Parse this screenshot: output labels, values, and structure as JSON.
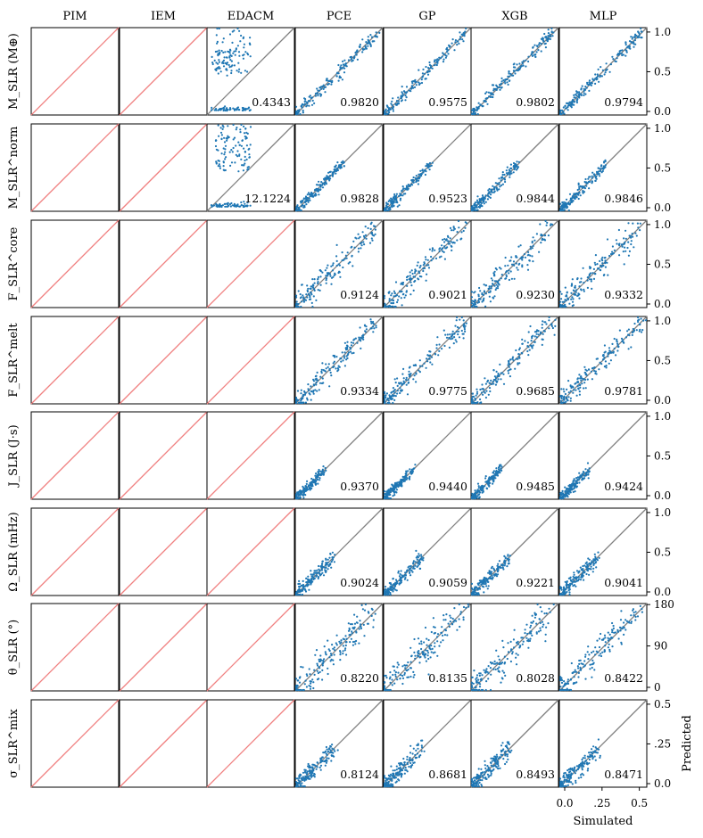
{
  "colors": {
    "scatter": "#1f77b4",
    "identity_line": "#808080",
    "empty_line": "#f08080",
    "frame": "#000000"
  },
  "columns": [
    "PIM",
    "IEM",
    "EDACM",
    "PCE",
    "GP",
    "XGB",
    "MLP"
  ],
  "rows": [
    {
      "label": "M_SLR (M⊕)",
      "yticks": [
        "0.0",
        "0.5",
        "1.0"
      ],
      "ytick_values": [
        0.0,
        0.5,
        1.0
      ],
      "range": [
        0,
        1.1
      ]
    },
    {
      "label": "M_SLR^norm",
      "yticks": [
        "0.0",
        "0.5",
        "1.0"
      ],
      "ytick_values": [
        0.0,
        0.5,
        1.0
      ],
      "range": [
        0,
        1.1
      ]
    },
    {
      "label": "F_SLR^core",
      "yticks": [
        "0.0",
        "0.5",
        "1.0"
      ],
      "ytick_values": [
        0.0,
        0.5,
        1.0
      ],
      "range": [
        0,
        1.1
      ]
    },
    {
      "label": "F_SLR^melt",
      "yticks": [
        "0.0",
        "0.5",
        "1.0"
      ],
      "ytick_values": [
        0.0,
        0.5,
        1.0
      ],
      "range": [
        0,
        1.1
      ]
    },
    {
      "label": "J_SLR (J·s)",
      "yticks": [
        "0.0",
        "0.5",
        "1.0"
      ],
      "ytick_values": [
        0.0,
        0.5,
        1.0
      ],
      "range": [
        0,
        1.1
      ]
    },
    {
      "label": "Ω_SLR (mHz)",
      "yticks": [
        "0.0",
        "0.5",
        "1.0"
      ],
      "ytick_values": [
        0.0,
        0.5,
        1.0
      ],
      "range": [
        0,
        1.1
      ]
    },
    {
      "label": "θ_SLR (°)",
      "yticks": [
        "0",
        "90",
        "180"
      ],
      "ytick_values": [
        0,
        90,
        180
      ],
      "range": [
        0,
        190
      ]
    },
    {
      "label": "σ_SLR^mix",
      "yticks": [
        "0.0",
        ".25",
        "0.5"
      ],
      "ytick_values": [
        0.0,
        0.25,
        0.5
      ],
      "range": [
        0,
        0.55
      ]
    }
  ],
  "chart_data": {
    "type": "scatter",
    "xlabel": "Simulated",
    "ylabel": "Predicted",
    "xticks": [
      "0.0",
      ".25",
      "0.5"
    ],
    "xtick_values": [
      0.0,
      0.25,
      0.5
    ],
    "xlim": [
      0,
      0.55
    ],
    "scores": [
      [
        null,
        null,
        "0.4343",
        "0.9820",
        "0.9575",
        "0.9802",
        "0.9794"
      ],
      [
        null,
        null,
        "12.1224",
        "0.9828",
        "0.9523",
        "0.9844",
        "0.9846"
      ],
      [
        null,
        null,
        null,
        "0.9124",
        "0.9021",
        "0.9230",
        "0.9332"
      ],
      [
        null,
        null,
        null,
        "0.9334",
        "0.9775",
        "0.9685",
        "0.9781"
      ],
      [
        null,
        null,
        null,
        "0.9370",
        "0.9440",
        "0.9485",
        "0.9424"
      ],
      [
        null,
        null,
        null,
        "0.9024",
        "0.9059",
        "0.9221",
        "0.9041"
      ],
      [
        null,
        null,
        null,
        "0.8220",
        "0.8135",
        "0.8028",
        "0.8422"
      ],
      [
        null,
        null,
        null,
        "0.8124",
        "0.8681",
        "0.8493",
        "0.8471"
      ]
    ],
    "has_scatter": [
      [
        false,
        false,
        true,
        true,
        true,
        true,
        true
      ],
      [
        false,
        false,
        true,
        true,
        true,
        true,
        true
      ],
      [
        false,
        false,
        false,
        true,
        true,
        true,
        true
      ],
      [
        false,
        false,
        false,
        true,
        true,
        true,
        true
      ],
      [
        false,
        false,
        false,
        true,
        true,
        true,
        true
      ],
      [
        false,
        false,
        false,
        true,
        true,
        true,
        true
      ],
      [
        false,
        false,
        false,
        true,
        true,
        true,
        true
      ],
      [
        false,
        false,
        false,
        true,
        true,
        true,
        true
      ]
    ]
  }
}
